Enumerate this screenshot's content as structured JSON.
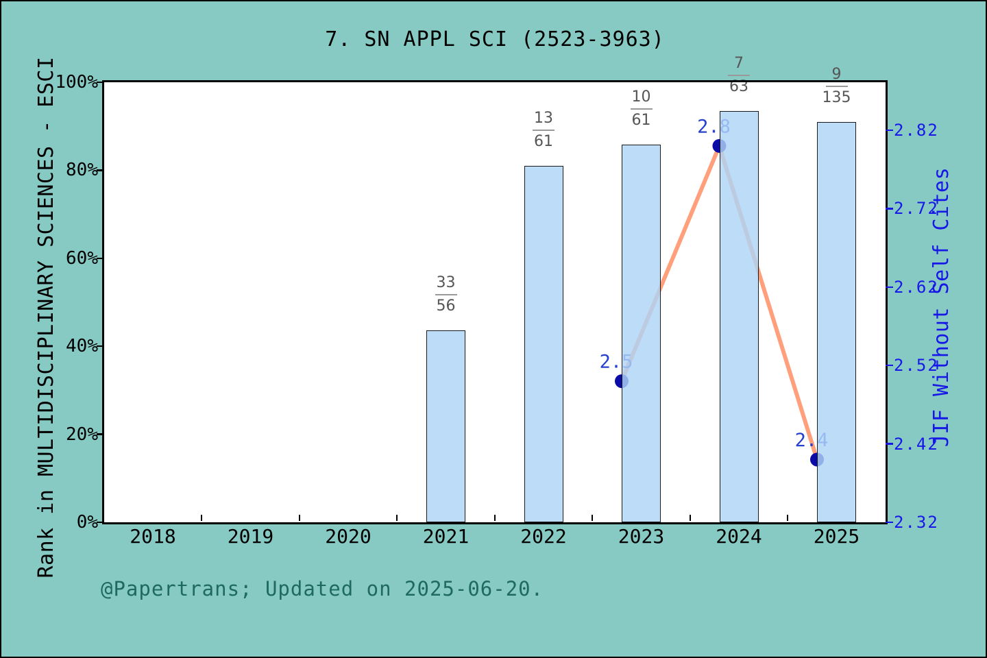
{
  "title": "7. SN APPL SCI (2523-3963)",
  "footer": "@Papertrans; Updated on 2025-06-20.",
  "axes": {
    "left": {
      "label": "Rank in MULTIDISCIPLINARY SCIENCES - ESCI",
      "tick_labels": [
        "0%",
        "20%",
        "40%",
        "60%",
        "80%",
        "100%"
      ],
      "tick_values": [
        0,
        20,
        40,
        60,
        80,
        100
      ],
      "range": [
        0,
        100
      ]
    },
    "right": {
      "label": "JIF Without Self Cites",
      "tick_labels": [
        "2.32",
        "2.42",
        "2.52",
        "2.62",
        "2.72",
        "2.82"
      ],
      "tick_values": [
        2.32,
        2.42,
        2.52,
        2.62,
        2.72,
        2.82
      ],
      "range": [
        2.32,
        2.881
      ]
    },
    "x": {
      "tick_labels": [
        "2018",
        "2019",
        "2020",
        "2021",
        "2022",
        "2023",
        "2024",
        "2025"
      ],
      "tick_values": [
        2018,
        2019,
        2020,
        2021,
        2022,
        2023,
        2024,
        2025
      ],
      "minor_ticks": [
        2018.5,
        2019.5,
        2020.5,
        2021.5,
        2022.5,
        2023.5,
        2024.5
      ],
      "range": [
        2017.5,
        2025.5
      ]
    }
  },
  "chart_data": {
    "type": "bar+line",
    "title": "7. SN APPL SCI (2523-3963)",
    "categories": [
      2018,
      2019,
      2020,
      2021,
      2022,
      2023,
      2024,
      2025
    ],
    "grid": false,
    "legend": "none",
    "series": [
      {
        "name": "Rank in MULTIDISCIPLINARY SCIENCES - ESCI",
        "type": "bar",
        "axis": "left",
        "unit": "percent",
        "points": [
          {
            "year": 2021,
            "rank": 33,
            "total": 56,
            "numerator": "33",
            "denominator": "56",
            "bar_pct": 43.6
          },
          {
            "year": 2022,
            "rank": 13,
            "total": 61,
            "numerator": "13",
            "denominator": "61",
            "bar_pct": 81.0
          },
          {
            "year": 2023,
            "rank": 10,
            "total": 61,
            "numerator": "10",
            "denominator": "61",
            "bar_pct": 85.8
          },
          {
            "year": 2024,
            "rank": 7,
            "total": 63,
            "numerator": "7",
            "denominator": "63",
            "bar_pct": 93.5
          },
          {
            "year": 2025,
            "rank": 9,
            "total": 135,
            "numerator": "9",
            "denominator": "135",
            "bar_pct": 91.0
          }
        ]
      },
      {
        "name": "JIF Without Self Cites",
        "type": "line",
        "axis": "right",
        "x_offset_years": -0.2,
        "points": [
          {
            "year": 2023,
            "value": 2.5,
            "label": "2.5"
          },
          {
            "year": 2024,
            "value": 2.8,
            "label": "2.8"
          },
          {
            "year": 2025,
            "value": 2.4,
            "label": "2.4"
          }
        ]
      }
    ]
  },
  "colors": {
    "background": "#87C9C3",
    "plot_background": "#FFFFFF",
    "spine": "#000000",
    "bar_fill": "rgba(175,212,246,0.82)",
    "bar_border": "#1A1A1A",
    "line": "#FF9F7B",
    "marker": "#0B0BA6",
    "annotation_text": "#2640D0",
    "right_axis_text": "#1717E8",
    "fraction_text": "#555555",
    "fraction_dash": "#999999",
    "footer_text": "#1E6A60",
    "axis_text": "#000000"
  }
}
